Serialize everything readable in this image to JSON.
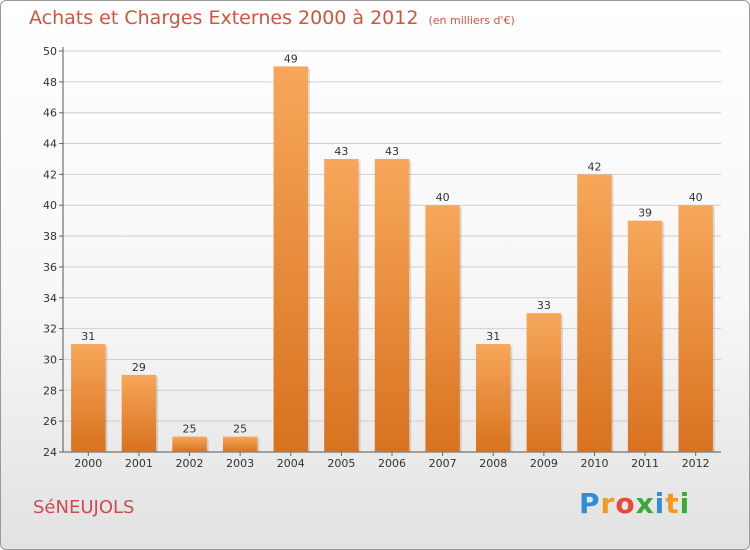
{
  "title": "Achats et Charges Externes 2000 à 2012",
  "subtitle": "(en milliers d'€)",
  "commune": "SéNEUJOLS",
  "logo": {
    "letters": [
      "P",
      "r",
      "o",
      "x",
      "i",
      "t",
      "i"
    ],
    "colors": [
      "#2f8fd6",
      "#f29a20",
      "#e84a36",
      "#3aa83a",
      "#2f8fd6",
      "#f29a20",
      "#3aa83a"
    ]
  },
  "colors": {
    "bar_top": "#f7a75a",
    "bar_bottom": "#d8721e",
    "title": "#d0563a",
    "grid": "#d0d0d0"
  },
  "chart_data": {
    "type": "bar",
    "categories": [
      "2000",
      "2001",
      "2002",
      "2003",
      "2004",
      "2005",
      "2006",
      "2007",
      "2008",
      "2009",
      "2010",
      "2011",
      "2012"
    ],
    "values": [
      31,
      29,
      25,
      25,
      49,
      43,
      43,
      40,
      31,
      33,
      42,
      39,
      40
    ],
    "ylim": [
      24,
      50
    ],
    "yticks": [
      24,
      26,
      28,
      30,
      32,
      34,
      36,
      38,
      40,
      42,
      44,
      46,
      48,
      50
    ],
    "grid": true,
    "xlabel": "",
    "ylabel": ""
  }
}
